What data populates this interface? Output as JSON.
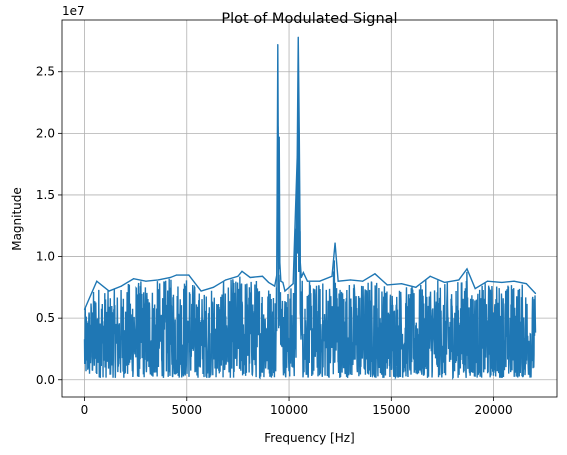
{
  "chart_data": {
    "type": "line",
    "title": "Plot of Modulated Signal",
    "xlabel": "Frequency [Hz]",
    "ylabel": "Magnitude",
    "y_offset_label": "1e7",
    "y_scale": 10000000,
    "xlim": [
      -1100,
      23100
    ],
    "ylim": [
      -1400000,
      29200000
    ],
    "x_ticks": [
      0,
      5000,
      10000,
      15000,
      20000
    ],
    "x_tick_labels": [
      "0",
      "5000",
      "10000",
      "15000",
      "20000"
    ],
    "y_ticks": [
      0,
      5000000,
      10000000,
      15000000,
      20000000,
      25000000
    ],
    "y_tick_labels": [
      "0.0",
      "0.5",
      "1.0",
      "1.5",
      "2.0",
      "2.5"
    ],
    "grid": true,
    "color": "#1f77b4",
    "series": [
      {
        "x": [
          0,
          600,
          1200,
          1800,
          2400,
          3000,
          3600,
          4200,
          4500,
          5100,
          5700,
          6300,
          6900,
          7500,
          7700,
          8100,
          8700,
          9000,
          9300,
          9400,
          9450,
          9500,
          9520,
          9550,
          9600,
          9700,
          9800,
          10000,
          10200,
          10400,
          10450,
          10500,
          10550,
          10600,
          10700,
          10900,
          11500,
          12100,
          12250,
          12400,
          13000,
          13600,
          14200,
          14800,
          15500,
          16200,
          16900,
          17600,
          18300,
          18700,
          19100,
          19700,
          20400,
          21000,
          21600,
          22050
        ],
        "y": [
          5700000,
          8000000,
          7200000,
          7600000,
          8200000,
          8000000,
          8100000,
          8300000,
          8500000,
          8500000,
          7200000,
          7500000,
          8100000,
          8400000,
          8800000,
          8300000,
          8400000,
          7900000,
          7600000,
          8500000,
          27200000,
          9000000,
          19700000,
          9500000,
          8000000,
          7900000,
          7200000,
          7500000,
          7800000,
          18100000,
          27800000,
          20000000,
          9500000,
          8300000,
          8700000,
          8000000,
          8000000,
          8400000,
          11100000,
          8000000,
          8100000,
          8000000,
          8600000,
          7700000,
          7800000,
          7500000,
          8400000,
          7900000,
          8100000,
          9000000,
          7400000,
          8000000,
          7900000,
          8000000,
          7800000,
          7000000
        ]
      }
    ]
  }
}
